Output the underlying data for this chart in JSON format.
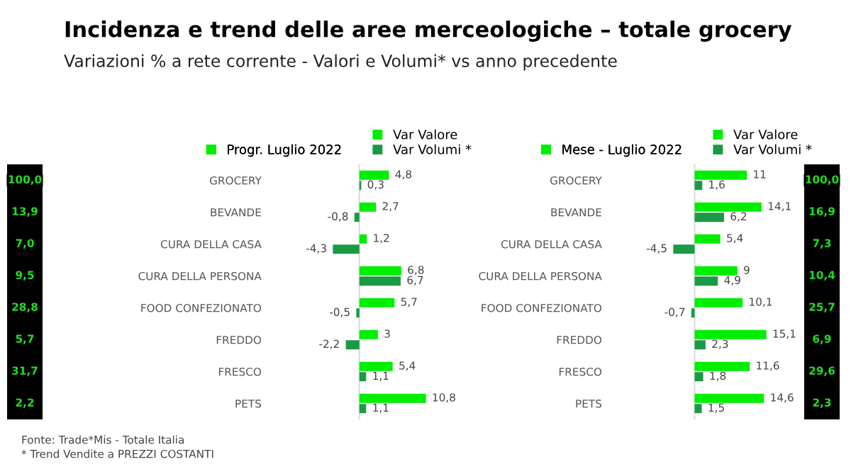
{
  "chart_data": [
    {
      "type": "other",
      "annotations": [
        "100,0",
        "13,9",
        "7,0",
        "9,5",
        "28,8",
        "5,7",
        "31,7",
        "2,2"
      ]
    },
    {
      "type": "bar",
      "orientation": "horizontal",
      "title": "Incidenza e trend delle aree merceologiche – totale grocery",
      "subtitle": "Variazioni % a rete corrente - Valori e Volumi* vs anno precedente",
      "legend_title": "Progr. Luglio 2022",
      "legend": "top",
      "tick_labels": "y",
      "grid": false,
      "categories": [
        "GROCERY",
        "BEVANDE",
        "CURA DELLA CASA",
        "CURA DELLA PERSONA",
        "FOOD CONFEZIONATO",
        "FREDDO",
        "FRESCO",
        "PETS"
      ],
      "ref_lines": [
        {
          "axis": "x",
          "value": 0,
          "color": "#dddddd"
        }
      ],
      "series": [
        {
          "name": "Var Valore",
          "color": "#00ee00",
          "values": [
            4.8,
            2.7,
            1.2,
            6.8,
            5.7,
            3,
            5.4,
            10.8
          ],
          "value_labels": [
            "4,8",
            "2,7",
            "1,2",
            "6,8",
            "5,7",
            "3",
            "5,4",
            "10,8"
          ]
        },
        {
          "name": "Var Volumi *",
          "color": "#1a9a45",
          "values": [
            0.3,
            -0.8,
            -4.3,
            6.7,
            -0.5,
            -2.2,
            1.1,
            1.1
          ],
          "value_labels": [
            "0,3",
            "-0,8",
            "-4,3",
            "6,7",
            "-0,5",
            "-2,2",
            "1,1",
            "1,1"
          ]
        }
      ],
      "annotations": [
        "Fonte: Trade*Mis - Totale Italia",
        "* Trend Vendite a PREZZI COSTANTI"
      ]
    },
    {
      "type": "bar",
      "orientation": "horizontal",
      "legend_title": "Mese - Luglio 2022",
      "legend": "top",
      "tick_labels": "y",
      "grid": false,
      "categories": [
        "GROCERY",
        "BEVANDE",
        "CURA DELLA CASA",
        "CURA DELLA PERSONA",
        "FOOD CONFEZIONATO",
        "FREDDO",
        "FRESCO",
        "PETS"
      ],
      "ref_lines": [
        {
          "axis": "x",
          "value": 0,
          "color": "#dddddd"
        }
      ],
      "series": [
        {
          "name": "Var Valore",
          "color": "#00ee00",
          "values": [
            11,
            14.1,
            5.4,
            9,
            10.1,
            15.1,
            11.6,
            14.6
          ],
          "value_labels": [
            "11",
            "14,1",
            "5,4",
            "9",
            "10,1",
            "15,1",
            "11,6",
            "14,6"
          ]
        },
        {
          "name": "Var Volumi *",
          "color": "#1a9a45",
          "values": [
            1.6,
            6.2,
            -4.5,
            4.9,
            -0.7,
            2.3,
            1.8,
            1.5
          ],
          "value_labels": [
            "1,6",
            "6,2",
            "-4,5",
            "4,9",
            "-0,7",
            "2,3",
            "1,8",
            "1,5"
          ]
        }
      ]
    },
    {
      "type": "other",
      "annotations": [
        "100,0",
        "16,9",
        "7,3",
        "10,4",
        "25,7",
        "6,9",
        "29,6",
        "2,3"
      ]
    }
  ]
}
